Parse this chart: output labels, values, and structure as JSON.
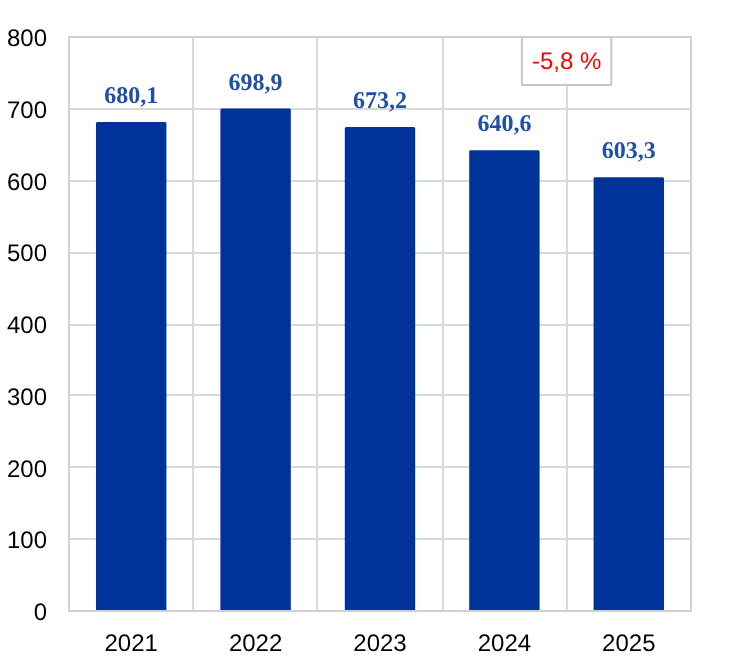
{
  "chart_data": {
    "type": "bar",
    "categories": [
      "2021",
      "2022",
      "2023",
      "2024",
      "2025"
    ],
    "values": [
      680.1,
      698.9,
      673.2,
      640.6,
      603.3
    ],
    "value_labels": [
      "680,1",
      "698,9",
      "673,2",
      "640,6",
      "603,3"
    ],
    "color": "#003399",
    "ylim": [
      0,
      800
    ],
    "yticks": [
      0,
      100,
      200,
      300,
      400,
      500,
      600,
      700,
      800
    ],
    "grid": true,
    "annotations": [
      "-5,8 %"
    ]
  }
}
